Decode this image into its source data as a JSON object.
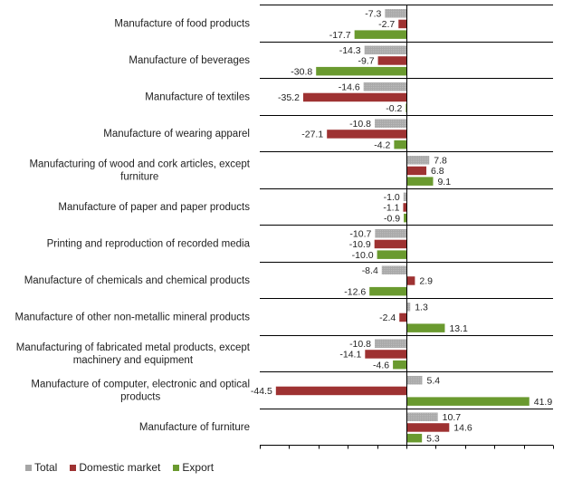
{
  "chart_data": {
    "type": "bar",
    "orientation": "horizontal",
    "title": "",
    "xlabel": "",
    "ylabel": "",
    "xlim": [
      -50,
      50
    ],
    "xticks": [
      -50,
      -40,
      -30,
      -20,
      -10,
      0,
      10,
      20,
      30,
      40,
      50
    ],
    "grid": false,
    "legend_position": "bottom-left",
    "categories": [
      [
        "Manufacture of food products"
      ],
      [
        "Manufacture of beverages"
      ],
      [
        "Manufacture of textiles"
      ],
      [
        "Manufacture of wearing apparel"
      ],
      [
        "Manufacturing of wood and cork articles, except",
        "furniture"
      ],
      [
        "Manufacture of paper and paper products"
      ],
      [
        "Printing and reproduction of recorded media"
      ],
      [
        "Manufacture of chemicals and chemical products"
      ],
      [
        "Manufacture of other non-metallic mineral products"
      ],
      [
        "Manufacturing of fabricated metal products, except",
        "machinery and equipment"
      ],
      [
        "Manufacture of computer, electronic and optical",
        "products"
      ],
      [
        "Manufacture of furniture"
      ]
    ],
    "series": [
      {
        "name": "Total",
        "color": "#a6a6a6",
        "values": [
          -7.3,
          -14.3,
          -14.6,
          -10.8,
          7.8,
          -1.0,
          -10.7,
          -8.4,
          1.3,
          -10.8,
          5.4,
          10.7
        ]
      },
      {
        "name": "Domestic market",
        "color": "#9e3232",
        "values": [
          -2.7,
          -9.7,
          -35.2,
          -27.1,
          6.8,
          -1.1,
          -10.9,
          2.9,
          -2.4,
          -14.1,
          -44.5,
          14.6
        ]
      },
      {
        "name": "Export",
        "color": "#6a9a2f",
        "values": [
          -17.7,
          -30.8,
          -0.2,
          -4.2,
          9.1,
          -0.9,
          -10.0,
          -12.6,
          13.1,
          -4.6,
          41.9,
          5.3
        ]
      }
    ]
  }
}
